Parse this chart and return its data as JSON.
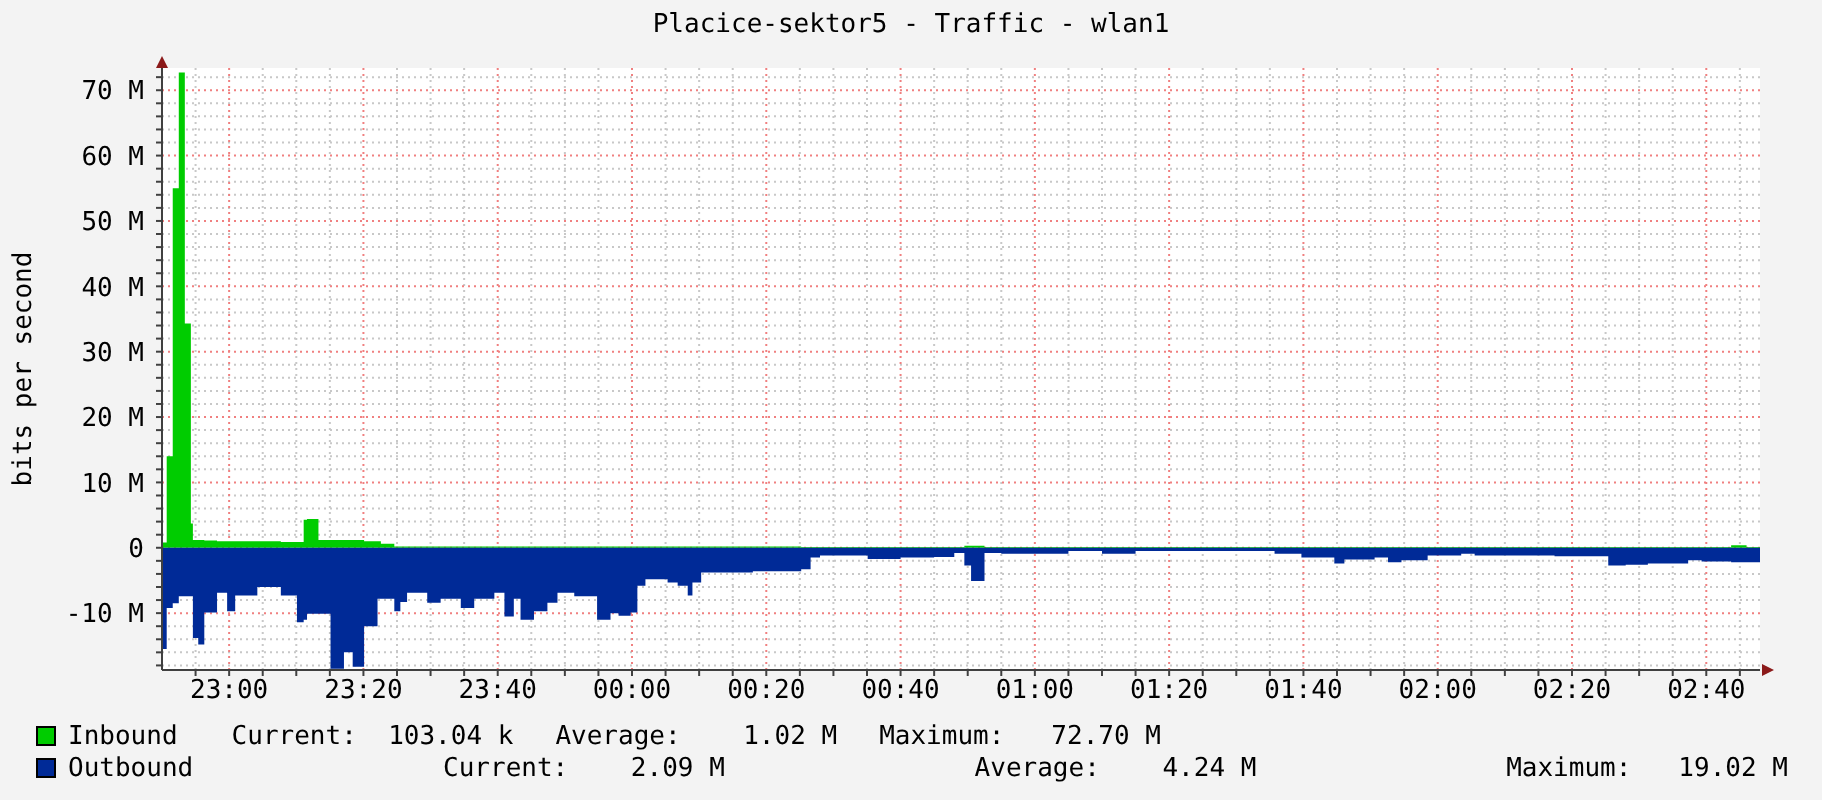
{
  "chart_data": {
    "type": "area",
    "title": "Placice-sektor5 - Traffic - wlan1",
    "ylabel": "bits per second",
    "x": [
      "2000-01-01T22:50:00",
      "2000-01-01T22:50:42",
      "2000-01-01T22:51:36",
      "2000-01-01T22:52:30",
      "2000-01-01T22:53:24",
      "2000-01-01T22:54:18",
      "2000-01-01T22:54:36",
      "2000-01-01T22:55:24",
      "2000-01-01T22:56:18",
      "2000-01-01T22:58:12",
      "2000-01-01T22:59:42",
      "2000-01-01T23:00:54",
      "2000-01-01T23:04:12",
      "2000-01-01T23:07:42",
      "2000-01-01T23:10:06",
      "2000-01-01T23:11:06",
      "2000-01-01T23:11:36",
      "2000-01-01T23:13:18",
      "2000-01-01T23:15:06",
      "2000-01-01T23:17:06",
      "2000-01-01T23:18:24",
      "2000-01-01T23:20:06",
      "2000-01-01T23:22:06",
      "2000-01-01T23:22:36",
      "2000-01-01T23:24:36",
      "2000-01-01T23:25:30",
      "2000-01-01T23:26:30",
      "2000-01-01T23:29:30",
      "2000-01-01T23:31:30",
      "2000-01-01T23:34:30",
      "2000-01-01T23:36:30",
      "2000-01-01T23:39:30",
      "2000-01-01T23:41:00",
      "2000-01-01T23:42:24",
      "2000-01-01T23:43:24",
      "2000-01-01T23:45:24",
      "2000-01-01T23:47:24",
      "2000-01-01T23:48:54",
      "2000-01-01T23:51:24",
      "2000-01-01T23:54:48",
      "2000-01-01T23:56:48",
      "2000-01-01T23:58:00",
      "2000-01-01T23:59:48",
      "2000-01-02T00:00:48",
      "2000-01-02T00:02:00",
      "2000-01-02T00:05:18",
      "2000-01-02T00:06:48",
      "2000-01-02T00:08:18",
      "2000-01-02T00:09:00",
      "2000-01-02T00:10:18",
      "2000-01-02T00:18:00",
      "2000-01-02T00:25:12",
      "2000-01-02T00:26:36",
      "2000-01-02T00:28:00",
      "2000-01-02T00:35:06",
      "2000-01-02T00:40:00",
      "2000-01-02T00:45:00",
      "2000-01-02T00:48:00",
      "2000-01-02T00:49:30",
      "2000-01-02T00:50:30",
      "2000-01-02T00:52:30",
      "2000-01-02T00:55:00",
      "2000-01-02T01:05:00",
      "2000-01-02T01:10:00",
      "2000-01-02T01:15:00",
      "2000-01-02T01:35:42",
      "2000-01-02T01:39:42",
      "2000-01-02T01:44:36",
      "2000-01-02T01:46:06",
      "2000-01-02T01:50:36",
      "2000-01-02T01:52:36",
      "2000-01-02T01:54:36",
      "2000-01-02T01:58:30",
      "2000-01-02T02:03:30",
      "2000-01-02T02:05:30",
      "2000-01-02T02:17:24",
      "2000-01-02T02:25:24",
      "2000-01-02T02:28:00",
      "2000-01-02T02:31:18",
      "2000-01-02T02:37:18",
      "2000-01-02T02:39:18",
      "2000-01-02T02:43:42",
      "2000-01-02T02:46:00",
      "2000-01-02T02:48:00"
    ],
    "series": [
      {
        "name": "Inbound",
        "color": "#00cc00",
        "values": [
          0.8,
          14.0,
          55.0,
          72.7,
          34.3,
          3.7,
          1.2,
          1.2,
          1.1,
          1.0,
          1.0,
          1.0,
          1.0,
          0.9,
          0.9,
          4.3,
          4.4,
          1.2,
          1.2,
          1.2,
          1.2,
          1.0,
          1.0,
          0.6,
          0.2,
          0.2,
          0.2,
          0.2,
          0.2,
          0.2,
          0.2,
          0.2,
          0.2,
          0.2,
          0.2,
          0.2,
          0.2,
          0.2,
          0.2,
          0.2,
          0.2,
          0.2,
          0.2,
          0.2,
          0.2,
          0.2,
          0.2,
          0.2,
          0.2,
          0.2,
          0.2,
          0.1,
          0.1,
          0.1,
          0.1,
          0.1,
          0.1,
          0.1,
          0.3,
          0.3,
          0.1,
          0.1,
          0.1,
          0.1,
          0.1,
          0.1,
          0.1,
          0.1,
          0.1,
          0.1,
          0.1,
          0.1,
          0.1,
          0.1,
          0.1,
          0.1,
          0.1,
          0.1,
          0.1,
          0.1,
          0.1,
          0.4,
          0.1,
          0.1
        ]
      },
      {
        "name": "Outbound",
        "color": "#002a97",
        "values": [
          -15.5,
          -9.2,
          -8.5,
          -7.4,
          -7.4,
          -7.4,
          -13.8,
          -14.8,
          -9.9,
          -6.9,
          -9.7,
          -7.3,
          -6.0,
          -7.3,
          -11.4,
          -11.0,
          -10.1,
          -10.1,
          -18.5,
          -16.0,
          -18.2,
          -12.0,
          -7.8,
          -7.8,
          -9.7,
          -8.3,
          -6.9,
          -8.4,
          -7.8,
          -9.2,
          -7.8,
          -6.9,
          -10.5,
          -7.8,
          -11.0,
          -9.7,
          -8.4,
          -6.9,
          -7.4,
          -11.0,
          -10.0,
          -10.4,
          -9.9,
          -5.8,
          -4.8,
          -5.3,
          -5.8,
          -7.3,
          -5.3,
          -3.8,
          -3.6,
          -3.3,
          -1.5,
          -1.2,
          -1.7,
          -1.5,
          -1.4,
          -0.8,
          -2.7,
          -5.1,
          -0.8,
          -0.9,
          -0.5,
          -0.9,
          -0.5,
          -0.9,
          -1.5,
          -2.4,
          -1.8,
          -1.5,
          -2.2,
          -1.9,
          -1.2,
          -0.9,
          -1.2,
          -1.3,
          -2.7,
          -2.6,
          -2.4,
          -1.9,
          -2.1,
          -2.2,
          -2.2,
          -2.2
        ]
      }
    ],
    "xlim": [
      "2000-01-01T22:50",
      "2000-01-02T02:48"
    ],
    "xticks": [
      {
        "value": "2000-01-01T22:55",
        "label": null
      },
      {
        "value": "2000-01-01T23:00",
        "label": "23:00"
      },
      {
        "value": "2000-01-01T23:05",
        "label": null
      },
      {
        "value": "2000-01-01T23:10",
        "label": null
      },
      {
        "value": "2000-01-01T23:15",
        "label": null
      },
      {
        "value": "2000-01-01T23:20",
        "label": "23:20"
      },
      {
        "value": "2000-01-01T23:25",
        "label": null
      },
      {
        "value": "2000-01-01T23:30",
        "label": null
      },
      {
        "value": "2000-01-01T23:35",
        "label": null
      },
      {
        "value": "2000-01-01T23:40",
        "label": "23:40"
      },
      {
        "value": "2000-01-01T23:45",
        "label": null
      },
      {
        "value": "2000-01-01T23:50",
        "label": null
      },
      {
        "value": "2000-01-01T23:55",
        "label": null
      },
      {
        "value": "2000-01-02T00:00",
        "label": "00:00"
      },
      {
        "value": "2000-01-02T00:05",
        "label": null
      },
      {
        "value": "2000-01-02T00:10",
        "label": null
      },
      {
        "value": "2000-01-02T00:15",
        "label": null
      },
      {
        "value": "2000-01-02T00:20",
        "label": "00:20"
      },
      {
        "value": "2000-01-02T00:25",
        "label": null
      },
      {
        "value": "2000-01-02T00:30",
        "label": null
      },
      {
        "value": "2000-01-02T00:35",
        "label": null
      },
      {
        "value": "2000-01-02T00:40",
        "label": "00:40"
      },
      {
        "value": "2000-01-02T00:45",
        "label": null
      },
      {
        "value": "2000-01-02T00:50",
        "label": null
      },
      {
        "value": "2000-01-02T00:55",
        "label": null
      },
      {
        "value": "2000-01-02T01:00",
        "label": "01:00"
      },
      {
        "value": "2000-01-02T01:05",
        "label": null
      },
      {
        "value": "2000-01-02T01:10",
        "label": null
      },
      {
        "value": "2000-01-02T01:15",
        "label": null
      },
      {
        "value": "2000-01-02T01:20",
        "label": "01:20"
      },
      {
        "value": "2000-01-02T01:25",
        "label": null
      },
      {
        "value": "2000-01-02T01:30",
        "label": null
      },
      {
        "value": "2000-01-02T01:35",
        "label": null
      },
      {
        "value": "2000-01-02T01:40",
        "label": "01:40"
      },
      {
        "value": "2000-01-02T01:45",
        "label": null
      },
      {
        "value": "2000-01-02T01:50",
        "label": null
      },
      {
        "value": "2000-01-02T01:55",
        "label": null
      },
      {
        "value": "2000-01-02T02:00",
        "label": "02:00"
      },
      {
        "value": "2000-01-02T02:05",
        "label": null
      },
      {
        "value": "2000-01-02T02:10",
        "label": null
      },
      {
        "value": "2000-01-02T02:15",
        "label": null
      },
      {
        "value": "2000-01-02T02:20",
        "label": "02:20"
      },
      {
        "value": "2000-01-02T02:25",
        "label": null
      },
      {
        "value": "2000-01-02T02:30",
        "label": null
      },
      {
        "value": "2000-01-02T02:35",
        "label": null
      },
      {
        "value": "2000-01-02T02:40",
        "label": "02:40"
      },
      {
        "value": "2000-01-02T02:45",
        "label": null
      }
    ],
    "ylim": [
      -18.7,
      73.4
    ],
    "yticks": [
      {
        "value": -18,
        "label": null
      },
      {
        "value": -16,
        "label": null
      },
      {
        "value": -14,
        "label": null
      },
      {
        "value": -12,
        "label": null
      },
      {
        "value": -10,
        "label": "-10 M"
      },
      {
        "value": -8,
        "label": null
      },
      {
        "value": -6,
        "label": null
      },
      {
        "value": -4,
        "label": null
      },
      {
        "value": -2,
        "label": null
      },
      0,
      {
        "value": 2,
        "label": null
      },
      {
        "value": 4,
        "label": null
      },
      {
        "value": 6,
        "label": null
      },
      {
        "value": 8,
        "label": null
      },
      {
        "value": 10,
        "label": "10 M"
      },
      {
        "value": 12,
        "label": null
      },
      {
        "value": 14,
        "label": null
      },
      {
        "value": 16,
        "label": null
      },
      {
        "value": 18,
        "label": null
      },
      {
        "value": 20,
        "label": "20 M"
      },
      {
        "value": 22,
        "label": null
      },
      {
        "value": 24,
        "label": null
      },
      {
        "value": 26,
        "label": null
      },
      {
        "value": 28,
        "label": null
      },
      {
        "value": 30,
        "label": "30 M"
      },
      {
        "value": 32,
        "label": null
      },
      {
        "value": 34,
        "label": null
      },
      {
        "value": 36,
        "label": null
      },
      {
        "value": 38,
        "label": null
      },
      {
        "value": 40,
        "label": "40 M"
      },
      {
        "value": 42,
        "label": null
      },
      {
        "value": 44,
        "label": null
      },
      {
        "value": 46,
        "label": null
      },
      {
        "value": 48,
        "label": null
      },
      {
        "value": 50,
        "label": "50 M"
      },
      {
        "value": 52,
        "label": null
      },
      {
        "value": 54,
        "label": null
      },
      {
        "value": 56,
        "label": null
      },
      {
        "value": 58,
        "label": null
      },
      {
        "value": 60,
        "label": "60 M"
      },
      {
        "value": 62,
        "label": null
      },
      {
        "value": 64,
        "label": null
      },
      {
        "value": 66,
        "label": null
      },
      {
        "value": 68,
        "label": null
      },
      {
        "value": 70,
        "label": "70 M"
      },
      {
        "value": 72,
        "label": null
      }
    ],
    "grid": true,
    "legend": "bottom",
    "annotations": [
      "Current:  103.04 k",
      "Average:    1.02 M",
      "Maximum:   72.70 M",
      "Current:    2.09 M",
      "Average:    4.24 M",
      "Maximum:   19.02 M"
    ]
  }
}
